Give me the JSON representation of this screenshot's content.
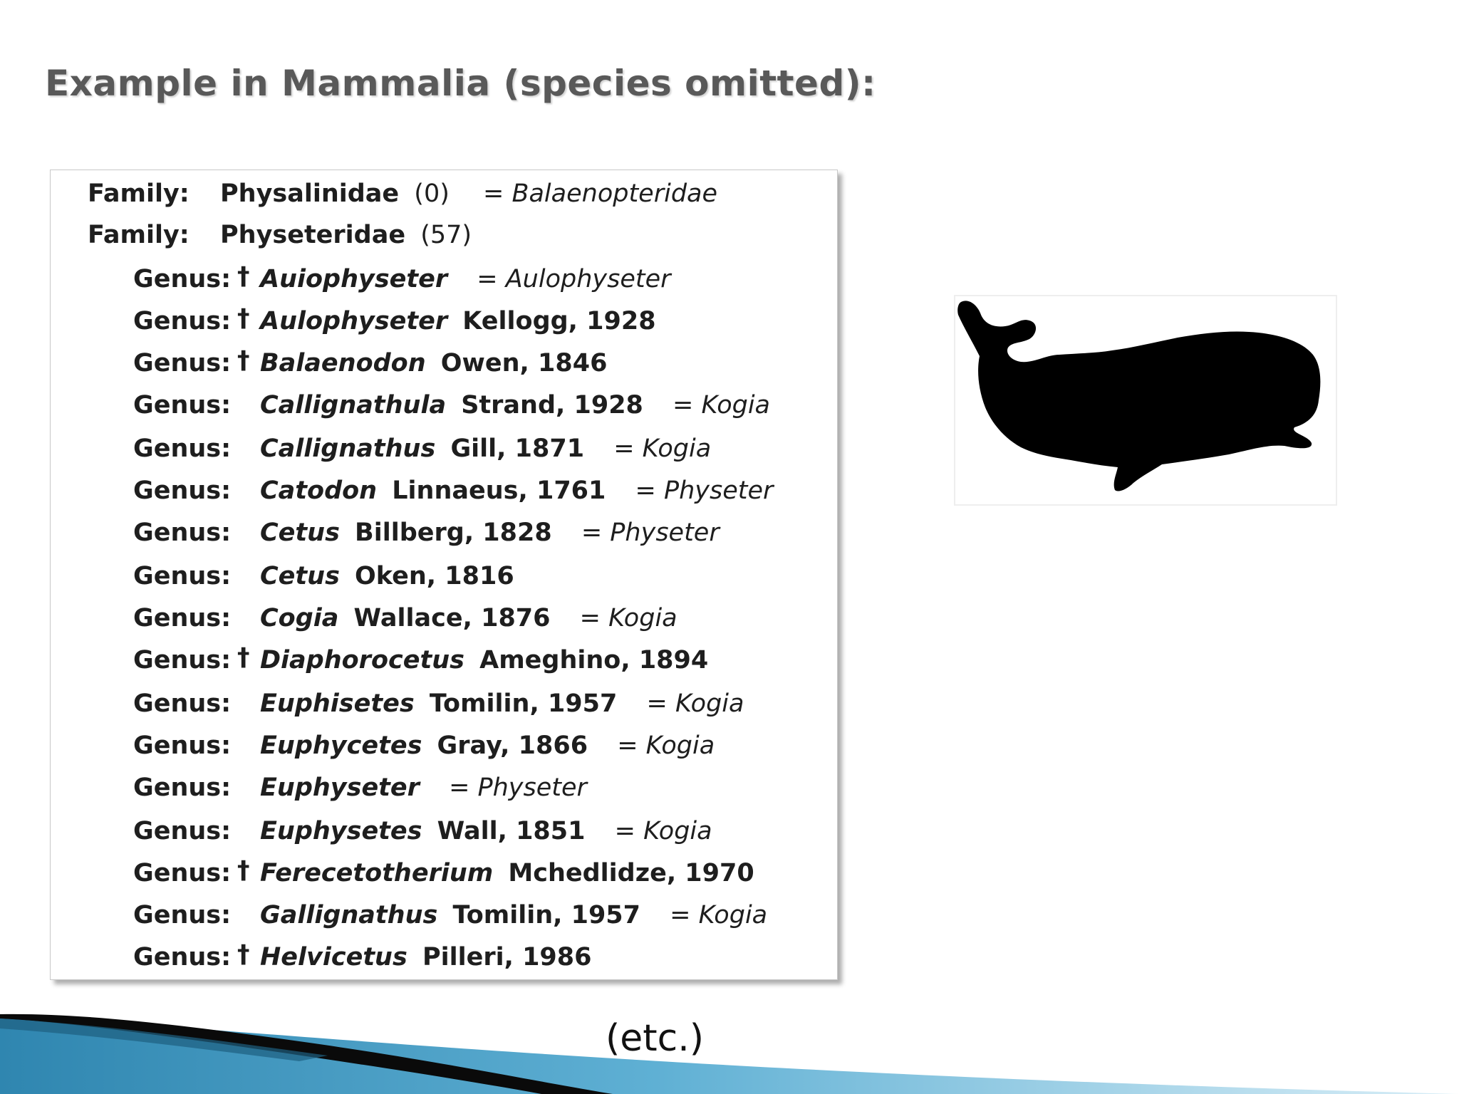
{
  "title": "Example in Mammalia (species omitted):",
  "families": [
    {
      "rank": "Family:",
      "name": "Physalinidae",
      "count": "(0)",
      "synonym": "= Balaenopteridae"
    },
    {
      "rank": "Family:",
      "name": "Physeteridae",
      "count": "(57)",
      "synonym": ""
    }
  ],
  "genera": [
    {
      "rank": "Genus:",
      "dagger": "†",
      "name": "Auiophyseter",
      "author": "",
      "synonym": "= Aulophyseter"
    },
    {
      "rank": "Genus:",
      "dagger": "†",
      "name": "Aulophyseter",
      "author": "Kellogg, 1928",
      "synonym": ""
    },
    {
      "rank": "Genus:",
      "dagger": "†",
      "name": "Balaenodon",
      "author": "Owen, 1846",
      "synonym": ""
    },
    {
      "rank": "Genus:",
      "dagger": "",
      "name": "Callignathula",
      "author": "Strand, 1928",
      "synonym": "= Kogia"
    },
    {
      "rank": "Genus:",
      "dagger": "",
      "name": "Callignathus",
      "author": "Gill, 1871",
      "synonym": "= Kogia"
    },
    {
      "rank": "Genus:",
      "dagger": "",
      "name": "Catodon",
      "author": "Linnaeus, 1761",
      "synonym": "= Physeter"
    },
    {
      "rank": "Genus:",
      "dagger": "",
      "name": "Cetus",
      "author": "Billberg, 1828",
      "synonym": "= Physeter"
    },
    {
      "rank": "Genus:",
      "dagger": "",
      "name": "Cetus",
      "author": "Oken, 1816",
      "synonym": ""
    },
    {
      "rank": "Genus:",
      "dagger": "",
      "name": "Cogia",
      "author": "Wallace, 1876",
      "synonym": "= Kogia"
    },
    {
      "rank": "Genus:",
      "dagger": "†",
      "name": "Diaphorocetus",
      "author": "Ameghino, 1894",
      "synonym": ""
    },
    {
      "rank": "Genus:",
      "dagger": "",
      "name": "Euphisetes",
      "author": "Tomilin, 1957",
      "synonym": "= Kogia"
    },
    {
      "rank": "Genus:",
      "dagger": "",
      "name": "Euphycetes",
      "author": "Gray, 1866",
      "synonym": "= Kogia"
    },
    {
      "rank": "Genus:",
      "dagger": "",
      "name": "Euphyseter",
      "author": "",
      "synonym": "= Physeter"
    },
    {
      "rank": "Genus:",
      "dagger": "",
      "name": "Euphysetes",
      "author": "Wall, 1851",
      "synonym": "= Kogia"
    },
    {
      "rank": "Genus:",
      "dagger": "†",
      "name": "Ferecetotherium",
      "author": "Mchedlidze, 1970",
      "synonym": ""
    },
    {
      "rank": "Genus:",
      "dagger": "",
      "name": "Gallignathus",
      "author": "Tomilin, 1957",
      "synonym": "= Kogia"
    },
    {
      "rank": "Genus:",
      "dagger": "†",
      "name": "Helvicetus",
      "author": "Pilleri, 1986",
      "synonym": ""
    }
  ],
  "caption": "(etc.)",
  "colors": {
    "title": "#595959",
    "text": "#1e1e1e",
    "swoosh_dark": "#0a0a0a",
    "swoosh_blue": "#3a8fb5",
    "swoosh_light": "#cfe6f1"
  }
}
